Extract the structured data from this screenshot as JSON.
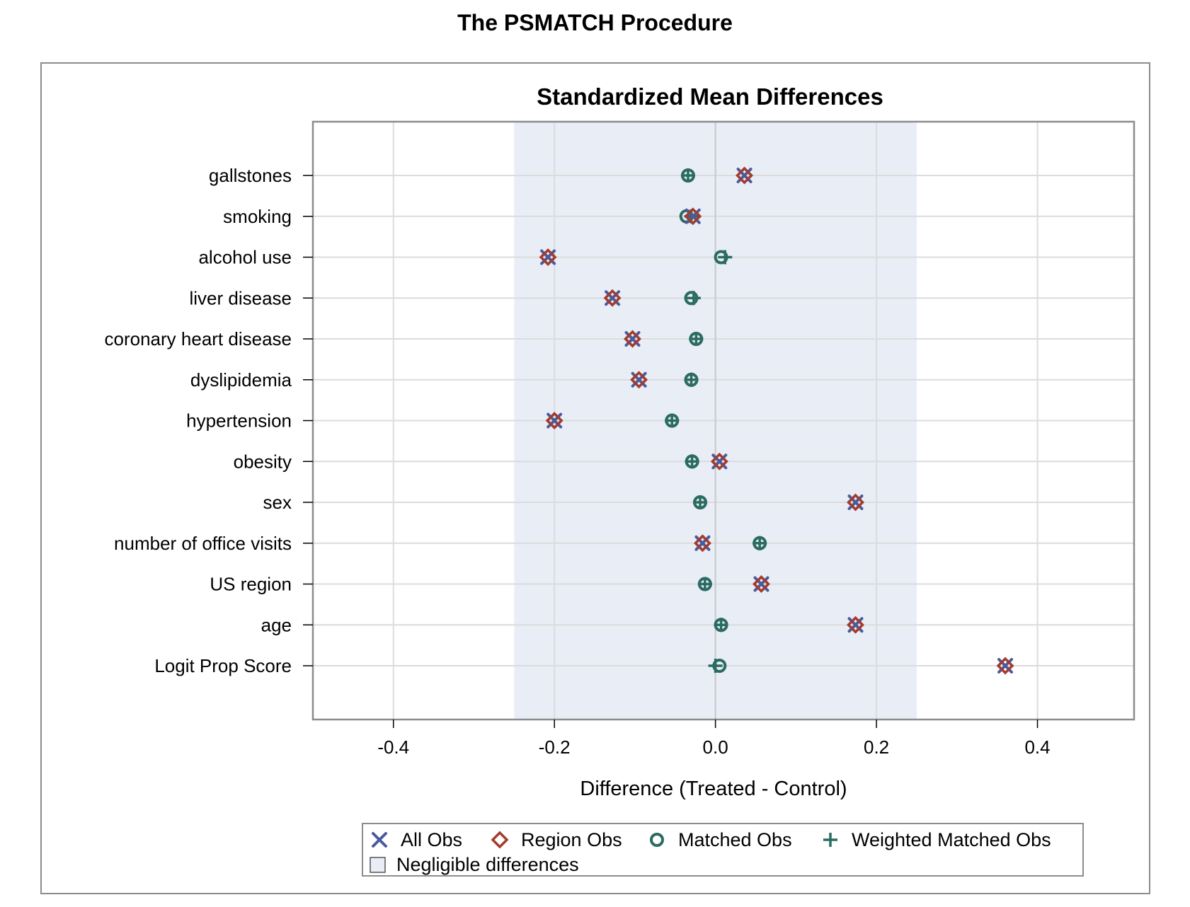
{
  "page_title": "The PSMATCH Procedure",
  "chart_data": {
    "type": "scatter",
    "title": "Standardized Mean Differences",
    "xlabel": "Difference (Treated - Control)",
    "ylabel": "",
    "xlim": [
      -0.5,
      0.52
    ],
    "xticks": [
      -0.4,
      -0.2,
      0.0,
      0.2,
      0.4
    ],
    "xtick_labels": [
      "-0.4",
      "-0.2",
      "0.0",
      "0.2",
      "0.4"
    ],
    "grid": true,
    "negligible_band": [
      -0.25,
      0.25
    ],
    "categories": [
      "gallstones",
      "smoking",
      "alcohol use",
      "liver disease",
      "coronary heart disease",
      "dyslipidemia",
      "hypertension",
      "obesity",
      "sex",
      "number of office visits",
      "US region",
      "age",
      "Logit Prop Score"
    ],
    "series": [
      {
        "name": "All Obs",
        "marker": "x",
        "color": "#4a5a9c",
        "values": [
          0.036,
          -0.028,
          -0.208,
          -0.128,
          -0.103,
          -0.095,
          -0.2,
          0.005,
          0.174,
          -0.016,
          0.057,
          0.174,
          0.36
        ]
      },
      {
        "name": "Region Obs",
        "marker": "diamond",
        "color": "#a33b2c",
        "values": [
          0.036,
          -0.028,
          -0.208,
          -0.128,
          -0.103,
          -0.095,
          -0.2,
          0.005,
          0.174,
          -0.016,
          0.057,
          0.174,
          0.36
        ]
      },
      {
        "name": "Matched Obs",
        "marker": "circle",
        "color": "#2a6b62",
        "values": [
          -0.034,
          -0.036,
          0.007,
          -0.03,
          -0.024,
          -0.03,
          -0.054,
          -0.029,
          -0.019,
          0.055,
          -0.013,
          0.007,
          0.005
        ]
      },
      {
        "name": "Weighted Matched Obs",
        "marker": "plus",
        "color": "#2a6b62",
        "values": [
          -0.034,
          -0.03,
          0.012,
          -0.027,
          -0.024,
          -0.03,
          -0.054,
          -0.029,
          -0.019,
          0.055,
          -0.013,
          0.007,
          0.0
        ]
      }
    ],
    "legend": {
      "placement": "bottom",
      "band_label": "Negligible differences"
    },
    "colors": {
      "band": "#e8edf6",
      "grid": "#dcdcdc",
      "zero_line": "#c8c8c8",
      "frame": "#8c8c8c"
    }
  }
}
